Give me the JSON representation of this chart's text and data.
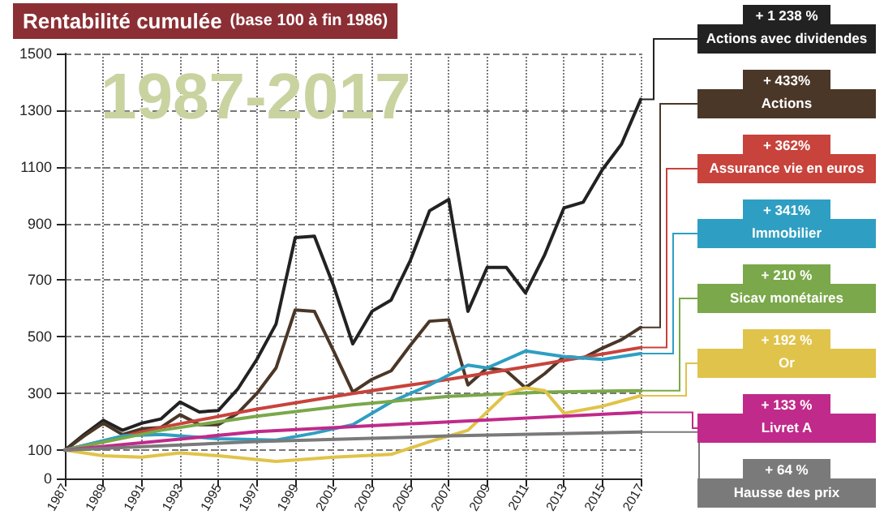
{
  "chart_data": {
    "type": "line",
    "title": "Rentabilité cumulée",
    "subtitle": "(base 100 à fin 1986)",
    "xlim": [
      1987,
      2017
    ],
    "xticks": [
      1987,
      1989,
      1991,
      1993,
      1995,
      1997,
      1999,
      2001,
      2003,
      2005,
      2007,
      2009,
      2011,
      2013,
      2015,
      2017
    ],
    "ylim": [
      0,
      1500
    ],
    "yticks": [
      0,
      100,
      300,
      500,
      700,
      900,
      1100,
      1300,
      1500
    ],
    "grid": true,
    "legend": "right",
    "line_style": "solid",
    "marker": "none",
    "annotations": [
      "1987-2017",
      "+ 1 238 %",
      "+ 433%",
      "+ 362%",
      "+ 341%",
      "+ 210 %",
      "+ 192 %",
      "+ 133 %",
      "+ 64 %"
    ],
    "series": [
      {
        "name": "Actions avec dividendes",
        "color": "#222222",
        "x": [
          1987,
          1988,
          1989,
          1990,
          1991,
          1992,
          1993,
          1994,
          1995,
          1996,
          1997,
          1998,
          1999,
          2000,
          2001,
          2002,
          2003,
          2004,
          2005,
          2006,
          2007,
          2008,
          2009,
          2010,
          2011,
          2012,
          2013,
          2014,
          2015,
          2016,
          2017
        ],
        "values": [
          100,
          155,
          205,
          170,
          195,
          210,
          270,
          235,
          240,
          315,
          420,
          545,
          850,
          855,
          680,
          475,
          590,
          630,
          770,
          945,
          985,
          590,
          745,
          745,
          655,
          790,
          955,
          975,
          1090,
          1180,
          1338
        ]
      },
      {
        "name": "Actions",
        "color": "#4a3728",
        "x": [
          1987,
          1988,
          1989,
          1990,
          1991,
          1992,
          1993,
          1994,
          1995,
          1996,
          1997,
          1998,
          1999,
          2000,
          2001,
          2002,
          2003,
          2004,
          2005,
          2006,
          2007,
          2008,
          2009,
          2010,
          2011,
          2012,
          2013,
          2014,
          2015,
          2016,
          2017
        ],
        "values": [
          100,
          150,
          195,
          155,
          175,
          180,
          225,
          190,
          190,
          230,
          300,
          390,
          595,
          590,
          450,
          305,
          350,
          380,
          470,
          555,
          560,
          330,
          390,
          380,
          320,
          370,
          430,
          425,
          460,
          490,
          533
        ]
      },
      {
        "name": "Assurance vie en euros",
        "color": "#c8433b",
        "x": [
          1987,
          1992,
          1997,
          2002,
          2007,
          2012,
          2017
        ],
        "values": [
          100,
          180,
          245,
          300,
          350,
          405,
          462
        ]
      },
      {
        "name": "Immobilier",
        "color": "#2e9fc2",
        "x": [
          1987,
          1990,
          1992,
          1995,
          1998,
          2000,
          2002,
          2004,
          2006,
          2008,
          2009,
          2011,
          2013,
          2015,
          2017
        ],
        "values": [
          100,
          150,
          155,
          140,
          135,
          160,
          190,
          270,
          330,
          400,
          390,
          450,
          430,
          420,
          441
        ]
      },
      {
        "name": "Sicav monétaires",
        "color": "#7aa84a",
        "x": [
          1987,
          1992,
          1997,
          2002,
          2007,
          2012,
          2017
        ],
        "values": [
          100,
          170,
          220,
          260,
          290,
          305,
          310
        ]
      },
      {
        "name": "Or",
        "color": "#e0c34a",
        "x": [
          1987,
          1989,
          1991,
          1993,
          1995,
          1998,
          2001,
          2004,
          2006,
          2008,
          2010,
          2011,
          2012,
          2013,
          2015,
          2017
        ],
        "values": [
          100,
          80,
          75,
          90,
          80,
          60,
          75,
          85,
          130,
          170,
          300,
          320,
          310,
          230,
          255,
          292
        ]
      },
      {
        "name": "Livret A",
        "color": "#c02a8a",
        "x": [
          1987,
          1997,
          2007,
          2017
        ],
        "values": [
          100,
          165,
          200,
          233
        ]
      },
      {
        "name": "Hausse des prix",
        "color": "#7a7a7a",
        "x": [
          1987,
          1997,
          2007,
          2017
        ],
        "values": [
          100,
          130,
          150,
          164
        ]
      }
    ]
  }
}
